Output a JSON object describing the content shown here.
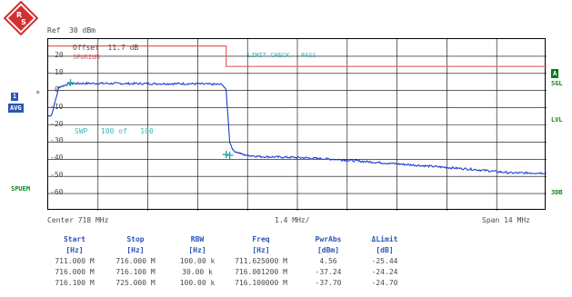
{
  "ref_text": "Ref  30 dBm",
  "offset_text": "Offset  11.7 dB",
  "spurium_label": "SPURIUM",
  "limit_check_text": "LIMIT CHECK   PASS",
  "swp_text": "SWP   100 of   100",
  "y_ticks": [
    "20",
    "10",
    "0",
    "-10",
    "-20",
    "-30",
    "-40",
    "-50",
    "-60"
  ],
  "left_indicators": {
    "trace_num": "1",
    "avg": "AVG",
    "star": "*",
    "spurem": "SPUEM"
  },
  "right_indicators": {
    "a": "A",
    "sgl": "SGL",
    "lvl": "LVL",
    "db3": "3DB"
  },
  "center_label": "Center 718 MHz",
  "span_per_div": "1.4 MHz/",
  "span_label": "Span 14 MHz",
  "table": {
    "headers": [
      "Start",
      "Stop",
      "RBW",
      "Freq",
      "PwrAbs",
      "ΔLimit"
    ],
    "units": [
      "[Hz]",
      "[Hz]",
      "[Hz]",
      "[Hz]",
      "[dBm]",
      "[dB]"
    ],
    "rows": [
      [
        "711.000 M",
        "716.000 M",
        "100.00 k",
        "711.625000 M",
        "4.56",
        "-25.44"
      ],
      [
        "716.000 M",
        "716.100 M",
        "30.00 k",
        "716.001200 M",
        "-37.24",
        "-24.24"
      ],
      [
        "716.100 M",
        "725.000 M",
        "100.00 k",
        "716.100000 M",
        "-37.70",
        "-24.70"
      ]
    ]
  },
  "colors": {
    "trace": "#1a3fd0",
    "limit_line": "#e06060",
    "marker": "#2aa8a8",
    "grid": "#000000",
    "status_green": "#0a8a20",
    "header_blue": "#2a55b5"
  },
  "chart_data": {
    "type": "line",
    "xlabel": "",
    "ylabel": "",
    "x_range_mhz": [
      711,
      725
    ],
    "ylim": [
      -70,
      30
    ],
    "series": [
      {
        "points": [
          [
            711.0,
            -15
          ],
          [
            711.1,
            -14
          ],
          [
            711.3,
            2
          ],
          [
            711.6,
            4
          ],
          [
            712.0,
            4.2
          ],
          [
            713.0,
            4.1
          ],
          [
            714.0,
            4.0
          ],
          [
            715.0,
            4.0
          ],
          [
            715.9,
            3.5
          ],
          [
            716.0,
            0
          ],
          [
            716.1,
            -30
          ],
          [
            716.2,
            -35
          ],
          [
            716.5,
            -37.5
          ],
          [
            717,
            -38.5
          ],
          [
            718,
            -39
          ],
          [
            719,
            -40
          ],
          [
            720,
            -41.5
          ],
          [
            721,
            -43
          ],
          [
            722,
            -44.5
          ],
          [
            723,
            -46
          ],
          [
            724,
            -48
          ],
          [
            725,
            -48
          ]
        ]
      }
    ],
    "limit_line": [
      [
        711.0,
        26
      ],
      [
        716.0,
        26
      ],
      [
        716.0,
        14
      ],
      [
        725.0,
        14
      ]
    ],
    "markers": [
      [
        711.625,
        4.56
      ],
      [
        716.0012,
        -37.24
      ],
      [
        716.1,
        -37.7
      ]
    ]
  }
}
